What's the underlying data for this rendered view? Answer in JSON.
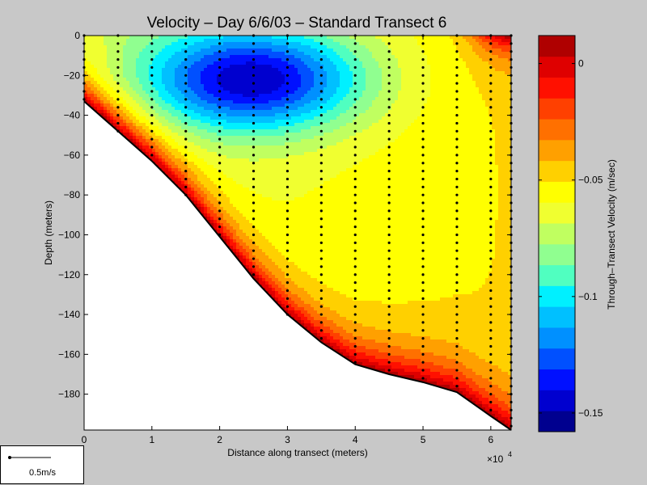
{
  "chart_data": {
    "type": "heatmap",
    "title": "Velocity – Day 6/6/03 – Standard Transect 6",
    "xlabel": "Distance along transect (meters)",
    "ylabel": "Depth (meters)",
    "x_exponent_label": "×10",
    "x_exponent_power": "4",
    "xlim": [
      0,
      63000
    ],
    "ylim": [
      -198,
      0
    ],
    "xticks": [
      0,
      10000,
      20000,
      30000,
      40000,
      50000,
      60000
    ],
    "xtick_labels": [
      "0",
      "1",
      "2",
      "3",
      "4",
      "5",
      "6"
    ],
    "yticks": [
      0,
      -20,
      -40,
      -60,
      -80,
      -100,
      -120,
      -140,
      -160,
      -180
    ],
    "ytick_labels": [
      "0",
      "−20",
      "−40",
      "−60",
      "−80",
      "−100",
      "−120",
      "−140",
      "−160",
      "−180"
    ],
    "bottom_profile": [
      [
        0,
        -33
      ],
      [
        5000,
        -48
      ],
      [
        10000,
        -63
      ],
      [
        15000,
        -80
      ],
      [
        20000,
        -101
      ],
      [
        25000,
        -122
      ],
      [
        30000,
        -140
      ],
      [
        35000,
        -154
      ],
      [
        40000,
        -165
      ],
      [
        45000,
        -170
      ],
      [
        50000,
        -174
      ],
      [
        55000,
        -179
      ],
      [
        60000,
        -191
      ],
      [
        63000,
        -198
      ]
    ],
    "station_x": [
      0,
      5000,
      10000,
      15000,
      20000,
      25000,
      30000,
      35000,
      40000,
      45000,
      50000,
      55000,
      60000,
      63000
    ],
    "colorbar": {
      "label": "Through–Transect Velocity (m/sec)",
      "range": [
        -0.158,
        0.012
      ],
      "ticks": [
        0,
        -0.05,
        -0.1,
        -0.15
      ],
      "tick_labels": [
        "0",
        "−0.05",
        "−0.1",
        "−0.15"
      ],
      "colors": [
        "#00008f",
        "#0000cf",
        "#0010ff",
        "#0050ff",
        "#0090ff",
        "#00c0ff",
        "#00f0ff",
        "#50ffc0",
        "#90ff90",
        "#c0ff60",
        "#f0ff30",
        "#ffff00",
        "#ffd000",
        "#ffa000",
        "#ff7000",
        "#ff4000",
        "#ff1000",
        "#df0000",
        "#af0000"
      ]
    },
    "field_features": {
      "core_minimum": {
        "x": 25000,
        "depth": -12,
        "value": -0.15
      },
      "core_extent": {
        "x_range": [
          8000,
          37000
        ],
        "depth_range": [
          -5,
          -50
        ]
      },
      "surface_max_right": {
        "x": 62000,
        "depth": -2,
        "value": 0.01
      },
      "bottom_boundary_value": 0.01,
      "far_field_value": -0.07
    }
  },
  "scale_legend": {
    "label": "0.5m/s"
  }
}
